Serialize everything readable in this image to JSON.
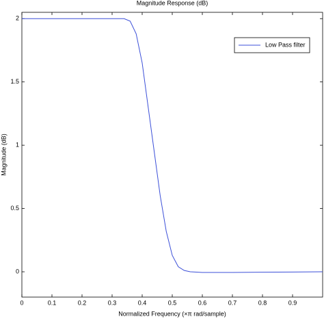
{
  "chart_data": {
    "type": "line",
    "title": "Magnitude Response (dB)",
    "x_label": "Normalized Frequency (×π rad/sample)",
    "y_label": "Magnitude (dB)",
    "x": [
      0,
      0.1,
      0.2,
      0.3,
      0.34,
      0.36,
      0.38,
      0.4,
      0.42,
      0.44,
      0.46,
      0.48,
      0.5,
      0.52,
      0.54,
      0.56,
      0.6,
      0.7,
      0.8,
      0.9,
      1.0
    ],
    "series": [
      {
        "name": "Low Pass filter",
        "color": "#3b4fd8",
        "values": [
          2,
          2,
          2,
          2,
          2,
          1.98,
          1.88,
          1.65,
          1.3,
          0.95,
          0.6,
          0.32,
          0.13,
          0.04,
          0.01,
          0,
          -0.005,
          -0.005,
          -0.003,
          -0.002,
          0
        ]
      }
    ],
    "xlim": [
      0,
      1
    ],
    "xticks": [
      0,
      0.1,
      0.2,
      0.3,
      0.4,
      0.5,
      0.6,
      0.7,
      0.8,
      0.9
    ],
    "ylim": [
      -0.2,
      2.05
    ],
    "yticks": [
      0,
      0.5,
      1,
      1.5,
      2
    ],
    "grid": false,
    "legend": "upper-right"
  }
}
